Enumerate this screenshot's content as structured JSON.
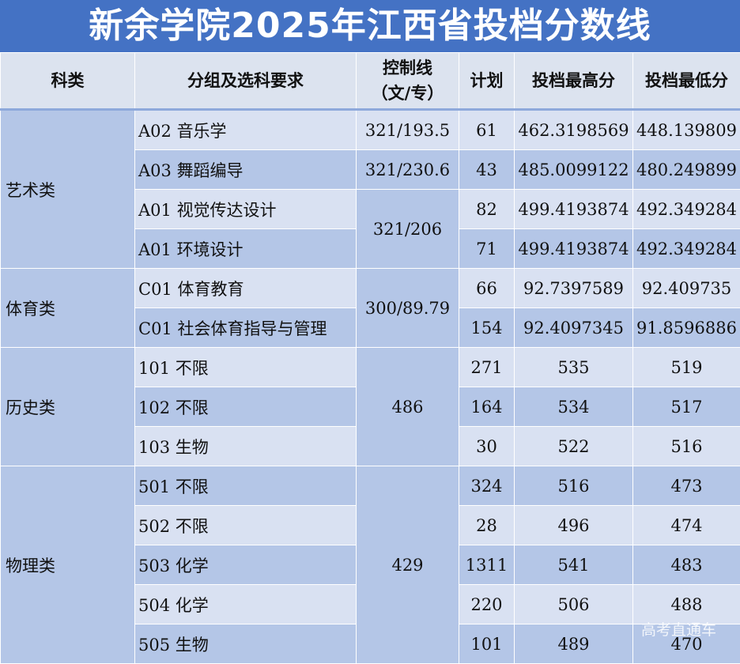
{
  "title": "新余学院2025年江西省投档分数线",
  "headers": [
    "科类",
    "分组及选科要求",
    "控制线\n（文/专）",
    "计划",
    "投档最高分",
    "投档最低分"
  ],
  "groups": [
    {
      "category": "艺术类",
      "rows": [
        {
          "group": "A02 音乐学",
          "control": "321/193.5",
          "plan": "61",
          "max": "462.3198569",
          "min": "448.139809"
        },
        {
          "group": "A03 舞蹈编导",
          "control": "321/230.6",
          "plan": "43",
          "max": "485.0099122",
          "min": "480.249899"
        },
        {
          "group": "A01 视觉传达设计",
          "control": "321/206",
          "plan": "82",
          "max": "499.4193874",
          "min": "492.349284"
        },
        {
          "group": "A01 环境设计",
          "control": "",
          "plan": "71",
          "max": "499.4193874",
          "min": "492.349284"
        }
      ]
    },
    {
      "category": "体育类",
      "rows": [
        {
          "group": "C01 体育教育",
          "control": "300/89.79",
          "plan": "66",
          "max": "92.7397589",
          "min": "92.409735"
        },
        {
          "group": "C01 社会体育指导与管理",
          "control": "",
          "plan": "154",
          "max": "92.4097345",
          "min": "91.8596886"
        }
      ]
    },
    {
      "category": "历史类",
      "rows": [
        {
          "group": "101 不限",
          "control": "486",
          "plan": "271",
          "max": "535",
          "min": "519"
        },
        {
          "group": "102 不限",
          "control": "",
          "plan": "164",
          "max": "534",
          "min": "517"
        },
        {
          "group": "103 生物",
          "control": "",
          "plan": "30",
          "max": "522",
          "min": "516"
        }
      ]
    },
    {
      "category": "物理类",
      "rows": [
        {
          "group": "501 不限",
          "control": "429",
          "plan": "324",
          "max": "516",
          "min": "473"
        },
        {
          "group": "502 不限",
          "control": "",
          "plan": "28",
          "max": "496",
          "min": "474"
        },
        {
          "group": "503 化学",
          "control": "",
          "plan": "1311",
          "max": "541",
          "min": "483"
        },
        {
          "group": "504 化学",
          "control": "",
          "plan": "220",
          "max": "506",
          "min": "488"
        },
        {
          "group": "505 生物",
          "control": "",
          "plan": "101",
          "max": "489",
          "min": "470"
        }
      ]
    }
  ],
  "watermark": "高考直通车",
  "colors": {
    "title_bg": "#4472c4",
    "header_bg": "#dce3ef",
    "row_light": "#d9e1f2",
    "row_dark": "#b4c6e7"
  }
}
